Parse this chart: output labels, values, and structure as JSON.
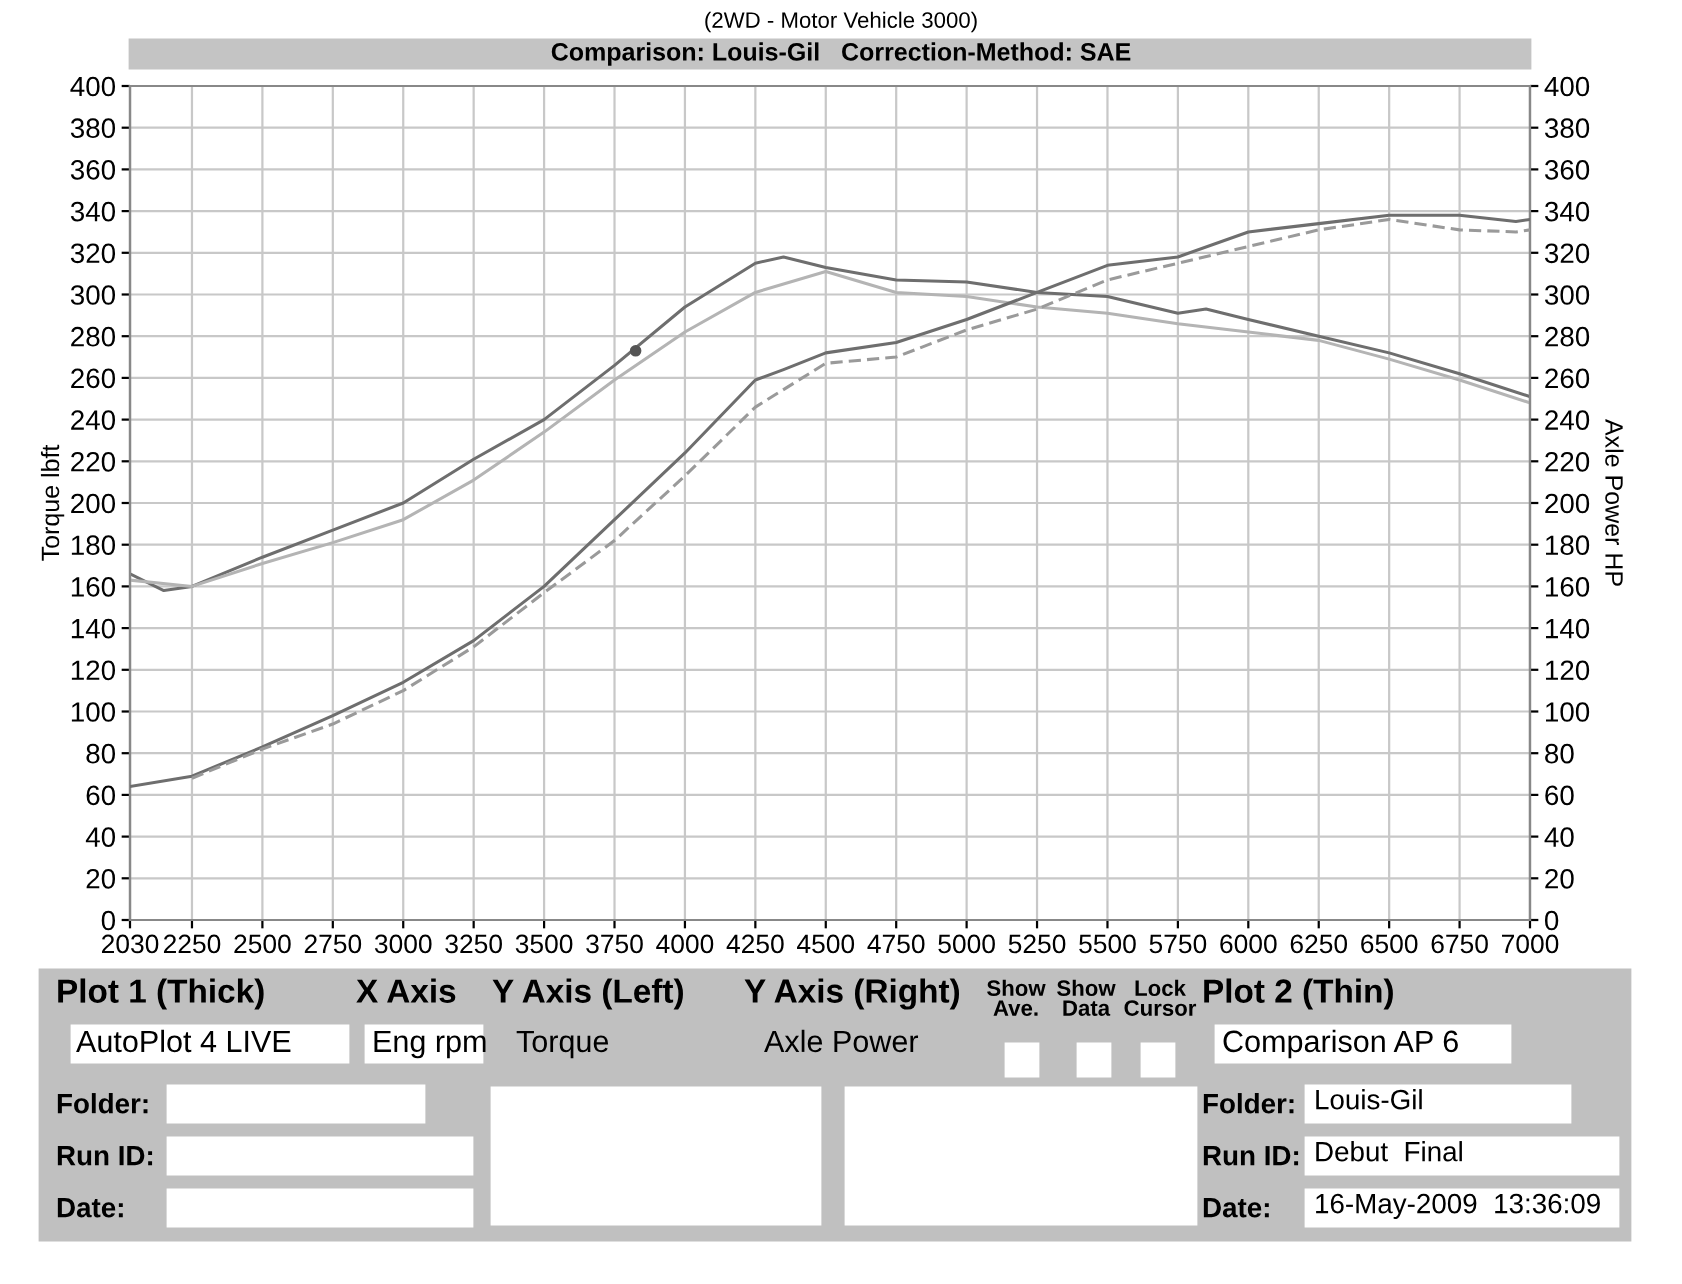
{
  "chart_data": {
    "type": "line",
    "title": "(2WD - Motor Vehicle 3000)",
    "subtitle": "Comparison: Louis-Gil   Correction-Method: SAE",
    "ylabel": "Torque lbft",
    "y2label": "Axle Power HP",
    "xlim": [
      2030,
      7000
    ],
    "xticks": [
      2030,
      2250,
      2500,
      2750,
      3000,
      3250,
      3500,
      3750,
      4000,
      4250,
      4500,
      4750,
      5000,
      5250,
      5500,
      5750,
      6000,
      6250,
      6500,
      6750,
      7000
    ],
    "ylim": [
      0,
      400
    ],
    "yticks": [
      0,
      20,
      40,
      60,
      80,
      100,
      120,
      140,
      160,
      180,
      200,
      220,
      240,
      260,
      280,
      300,
      320,
      340,
      360,
      380,
      400
    ],
    "y2lim": [
      0,
      400
    ],
    "y2ticks": [
      0,
      20,
      40,
      60,
      80,
      100,
      120,
      140,
      160,
      180,
      200,
      220,
      240,
      260,
      280,
      300,
      320,
      340,
      360,
      380,
      400
    ],
    "grid": true,
    "legend": false,
    "series": [
      {
        "color": "#6e6e6e",
        "line_style": "solid",
        "x": [
          2030,
          2150,
          2250,
          2500,
          2750,
          3000,
          3250,
          3500,
          3750,
          4000,
          4250,
          4350,
          4500,
          4750,
          5000,
          5250,
          5500,
          5750,
          5850,
          6000,
          6250,
          6500,
          6750,
          7000
        ],
        "values": [
          166,
          158,
          160,
          174,
          187,
          200,
          221,
          240,
          266,
          294,
          315,
          318,
          313,
          307,
          306,
          301,
          299,
          291,
          293,
          288,
          280,
          272,
          262,
          251
        ]
      },
      {
        "color": "#b4b4b4",
        "line_style": "solid",
        "x": [
          2030,
          2250,
          2500,
          2750,
          3000,
          3250,
          3500,
          3750,
          4000,
          4250,
          4500,
          4750,
          5000,
          5250,
          5500,
          5750,
          6000,
          6250,
          6500,
          6750,
          7000
        ],
        "values": [
          163,
          160,
          171,
          181,
          192,
          211,
          234,
          259,
          282,
          301,
          311,
          301,
          299,
          294,
          291,
          286,
          282,
          278,
          269,
          259,
          248
        ]
      },
      {
        "color": "#6e6e6e",
        "line_style": "solid",
        "axis": "y2",
        "x": [
          2030,
          2250,
          2500,
          2750,
          3000,
          3250,
          3500,
          3750,
          4000,
          4250,
          4350,
          4500,
          4750,
          5000,
          5250,
          5500,
          5750,
          6000,
          6250,
          6500,
          6750,
          6950,
          7000
        ],
        "values": [
          64,
          69,
          83,
          98,
          114,
          134,
          160,
          192,
          224,
          259,
          264,
          272,
          277,
          288,
          301,
          314,
          318,
          330,
          334,
          338,
          338,
          335,
          336
        ]
      },
      {
        "color": "#9a9a9a",
        "line_style": "dashed",
        "axis": "y2",
        "x": [
          2250,
          2500,
          2750,
          3000,
          3250,
          3500,
          3750,
          4000,
          4250,
          4500,
          4750,
          5000,
          5250,
          5500,
          5750,
          6000,
          6250,
          6500,
          6750,
          6950,
          7000
        ],
        "values": [
          68,
          82,
          94,
          110,
          131,
          157,
          182,
          213,
          246,
          267,
          270,
          283,
          293,
          307,
          315,
          323,
          331,
          336,
          331,
          330,
          331
        ]
      },
      {
        "type": "scatter",
        "color": "#555555",
        "marker": "circle",
        "x": [
          3825
        ],
        "values": [
          273
        ]
      }
    ],
    "annotations": [
      "Plot 1 (Thick)",
      "X Axis",
      "Y Axis (Left)",
      "Y Axis (Right)",
      "Show\nAve.",
      "Show\nData",
      "Lock\nCursor",
      "Plot 2 (Thin)",
      "AutoPlot 4 LIVE",
      "Eng rpm",
      "Torque",
      "Axle Power",
      "Comparison AP 6",
      "Folder:",
      "Run ID:",
      "Date:",
      "Folder:",
      "Run ID:",
      "Date:",
      "Louis-Gil",
      "Debut  Final",
      "16-May-2009  13:36:09"
    ]
  }
}
